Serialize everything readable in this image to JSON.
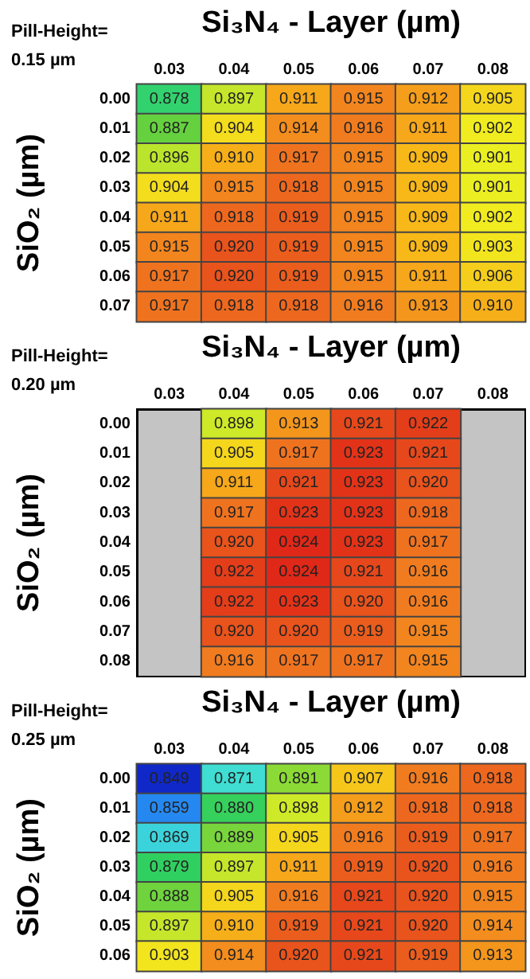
{
  "chart_data": [
    {
      "type": "heatmap",
      "data_labels": true,
      "title": "Pill-Height= 0.15 µm",
      "xlabel": "Si₃N₄ - Layer (µm)",
      "ylabel": "SiO₂ (µm)",
      "categories": [
        "0.03",
        "0.04",
        "0.05",
        "0.06",
        "0.07",
        "0.08"
      ],
      "y_categories": [
        "0.00",
        "0.01",
        "0.02",
        "0.03",
        "0.04",
        "0.05",
        "0.06",
        "0.07"
      ],
      "cells": [
        [
          0.878,
          0.897,
          0.911,
          0.915,
          0.912,
          0.905
        ],
        [
          0.887,
          0.904,
          0.914,
          0.916,
          0.911,
          0.902
        ],
        [
          0.896,
          0.91,
          0.917,
          0.915,
          0.909,
          0.901
        ],
        [
          0.904,
          0.915,
          0.918,
          0.915,
          0.909,
          0.901
        ],
        [
          0.911,
          0.918,
          0.919,
          0.915,
          0.909,
          0.902
        ],
        [
          0.915,
          0.92,
          0.919,
          0.915,
          0.909,
          0.903
        ],
        [
          0.917,
          0.92,
          0.919,
          0.915,
          0.911,
          0.906
        ],
        [
          0.917,
          0.918,
          0.918,
          0.916,
          0.913,
          0.91
        ]
      ],
      "cell_labels": [
        [
          "0.878",
          "0.897",
          "0.911",
          "0.915",
          "0.912",
          "0.905"
        ],
        [
          "0.887",
          "0.904",
          "0.914",
          "0.916",
          "0.911",
          "0.902"
        ],
        [
          "0.896",
          "0.910",
          "0.917",
          "0.915",
          "0.909",
          "0.901"
        ],
        [
          "0.904",
          "0.915",
          "0.918",
          "0.915",
          "0.909",
          "0.901"
        ],
        [
          "0.911",
          "0.918",
          "0.919",
          "0.915",
          "0.909",
          "0.902"
        ],
        [
          "0.915",
          "0.920",
          "0.919",
          "0.915",
          "0.909",
          "0.903"
        ],
        [
          "0.917",
          "0.920",
          "0.919",
          "0.915",
          "0.911",
          "0.906"
        ],
        [
          "0.917",
          "0.918",
          "0.918",
          "0.916",
          "0.913",
          "0.910"
        ]
      ]
    },
    {
      "type": "heatmap",
      "data_labels": true,
      "title": "Pill-Height= 0.20 µm",
      "xlabel": "Si₃N₄ - Layer (µm)",
      "ylabel": "SiO₂ (µm)",
      "categories": [
        "0.03",
        "0.04",
        "0.05",
        "0.06",
        "0.07",
        "0.08"
      ],
      "y_categories": [
        "0.00",
        "0.01",
        "0.02",
        "0.03",
        "0.04",
        "0.05",
        "0.06",
        "0.07",
        "0.08"
      ],
      "cells": [
        [
          null,
          0.898,
          0.913,
          0.921,
          0.922,
          null
        ],
        [
          null,
          0.905,
          0.917,
          0.923,
          0.921,
          null
        ],
        [
          null,
          0.911,
          0.921,
          0.923,
          0.92,
          null
        ],
        [
          null,
          0.917,
          0.923,
          0.923,
          0.918,
          null
        ],
        [
          null,
          0.92,
          0.924,
          0.923,
          0.917,
          null
        ],
        [
          null,
          0.922,
          0.924,
          0.921,
          0.916,
          null
        ],
        [
          null,
          0.922,
          0.923,
          0.92,
          0.916,
          null
        ],
        [
          null,
          0.92,
          0.92,
          0.919,
          0.915,
          null
        ],
        [
          null,
          0.916,
          0.917,
          0.917,
          0.915,
          null
        ]
      ],
      "cell_labels": [
        [
          null,
          "0.898",
          "0.913",
          "0.921",
          "0.922",
          null
        ],
        [
          null,
          "0.905",
          "0.917",
          "0.923",
          "0.921",
          null
        ],
        [
          null,
          "0.911",
          "0.921",
          "0.923",
          "0.920",
          null
        ],
        [
          null,
          "0.917",
          "0.923",
          "0.923",
          "0.918",
          null
        ],
        [
          null,
          "0.920",
          "0.924",
          "0.923",
          "0.917",
          null
        ],
        [
          null,
          "0.922",
          "0.924",
          "0.921",
          "0.916",
          null
        ],
        [
          null,
          "0.922",
          "0.923",
          "0.920",
          "0.916",
          null
        ],
        [
          null,
          "0.920",
          "0.920",
          "0.919",
          "0.915",
          null
        ],
        [
          null,
          "0.916",
          "0.917",
          "0.917",
          "0.915",
          null
        ]
      ]
    },
    {
      "type": "heatmap",
      "data_labels": true,
      "title": "Pill-Height= 0.25 µm",
      "xlabel": "Si₃N₄ - Layer (µm)",
      "ylabel": "SiO₂ (µm)",
      "categories": [
        "0.03",
        "0.04",
        "0.05",
        "0.06",
        "0.07",
        "0.08"
      ],
      "y_categories": [
        "0.00",
        "0.01",
        "0.02",
        "0.03",
        "0.04",
        "0.05",
        "0.06"
      ],
      "cells": [
        [
          0.849,
          0.871,
          0.891,
          0.907,
          0.916,
          0.918
        ],
        [
          0.859,
          0.88,
          0.898,
          0.912,
          0.918,
          0.918
        ],
        [
          0.869,
          0.889,
          0.905,
          0.916,
          0.919,
          0.917
        ],
        [
          0.879,
          0.897,
          0.911,
          0.919,
          0.92,
          0.916
        ],
        [
          0.888,
          0.905,
          0.916,
          0.921,
          0.92,
          0.915
        ],
        [
          0.897,
          0.91,
          0.919,
          0.921,
          0.92,
          0.914
        ],
        [
          0.903,
          0.914,
          0.92,
          0.921,
          0.919,
          0.913
        ]
      ],
      "cell_labels": [
        [
          "0.849",
          "0.871",
          "0.891",
          "0.907",
          "0.916",
          "0.918"
        ],
        [
          "0.859",
          "0.880",
          "0.898",
          "0.912",
          "0.918",
          "0.918"
        ],
        [
          "0.869",
          "0.889",
          "0.905",
          "0.916",
          "0.919",
          "0.917"
        ],
        [
          "0.879",
          "0.897",
          "0.911",
          "0.919",
          "0.920",
          "0.916"
        ],
        [
          "0.888",
          "0.905",
          "0.916",
          "0.921",
          "0.920",
          "0.915"
        ],
        [
          "0.897",
          "0.910",
          "0.919",
          "0.921",
          "0.920",
          "0.914"
        ],
        [
          "0.903",
          "0.914",
          "0.920",
          "0.921",
          "0.919",
          "0.913"
        ]
      ]
    }
  ]
}
